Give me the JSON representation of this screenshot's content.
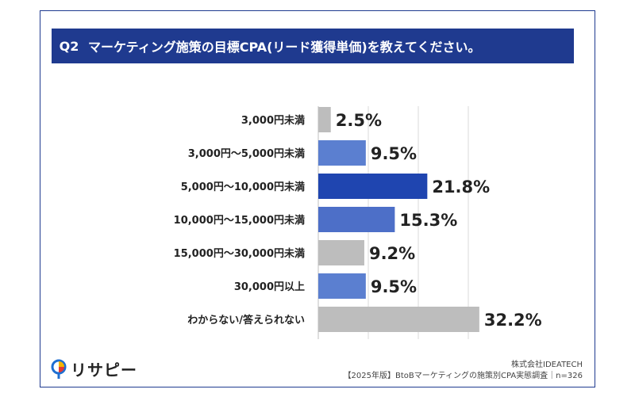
{
  "header": {
    "badge": "Q2",
    "title": "マーケティング施策の目標CPA(リード獲得単価)を教えてください。"
  },
  "chart_data": {
    "type": "bar",
    "orientation": "horizontal",
    "categories": [
      "3,000円未満",
      "3,000円〜5,000円未満",
      "5,000円〜10,000円未満",
      "10,000円〜15,000円未満",
      "15,000円〜30,000円未満",
      "30,000円以上",
      "わからない/答えられない"
    ],
    "values": [
      2.5,
      9.5,
      21.8,
      15.3,
      9.2,
      9.5,
      32.2
    ],
    "value_labels": [
      "2.5%",
      "9.5%",
      "21.8%",
      "15.3%",
      "9.2%",
      "9.5%",
      "32.2%"
    ],
    "colors": [
      "#bdbdbd",
      "#5b7fd0",
      "#1f45b0",
      "#4d6fc8",
      "#bdbdbd",
      "#5b7fd0",
      "#bdbdbd"
    ],
    "xlim": [
      0,
      40
    ],
    "grid": true
  },
  "footer": {
    "logo_text": "リサピー",
    "company": "株式会社IDEATECH",
    "survey": "【2025年版】BtoBマーケティングの施策別CPA実態調査｜n=326"
  }
}
